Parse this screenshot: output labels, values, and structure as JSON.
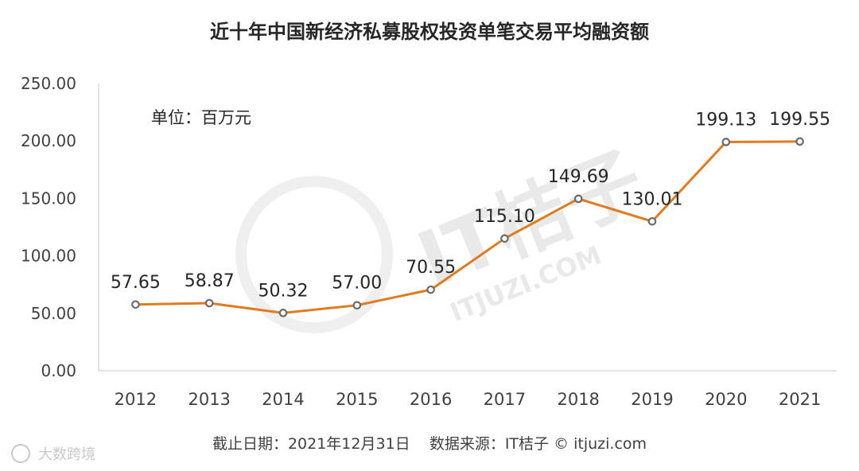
{
  "chart_data": {
    "type": "line",
    "title": "近十年中国新经济私募股权投资单笔交易平均融资额",
    "unit_label": "单位：百万元",
    "categories": [
      "2012",
      "2013",
      "2014",
      "2015",
      "2016",
      "2017",
      "2018",
      "2019",
      "2020",
      "2021"
    ],
    "values": [
      57.65,
      58.87,
      50.32,
      57.0,
      70.55,
      115.1,
      149.69,
      130.01,
      199.13,
      199.55
    ],
    "value_labels": [
      "57.65",
      "58.87",
      "50.32",
      "57.00",
      "70.55",
      "115.10",
      "149.69",
      "130.01",
      "199.13",
      "199.55"
    ],
    "ylim": [
      0,
      250
    ],
    "yticks": [
      "0.00",
      "50.00",
      "100.00",
      "150.00",
      "200.00",
      "250.00"
    ],
    "grid": false,
    "line_color": "#e07b1f",
    "marker_color": "#6b6b6b",
    "footer": "截止日期：2021年12月31日    数据来源：IT桔子 © itjuzi.com",
    "watermark": "IT桔子",
    "watermark_sub": "ITJUZI.COM",
    "corner_badge": "大数跨境"
  }
}
